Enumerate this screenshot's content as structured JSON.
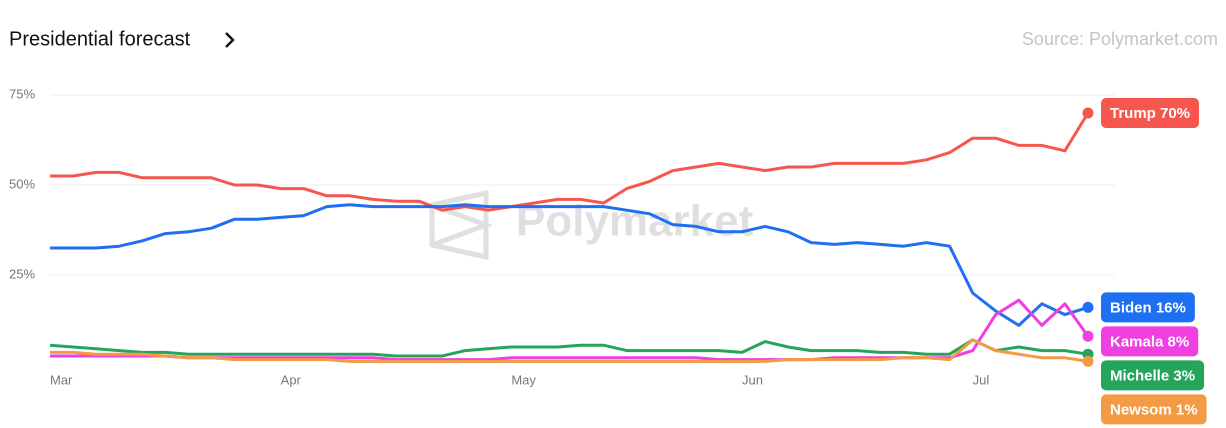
{
  "chart_data": {
    "type": "line",
    "title": "Presidential forecast",
    "source": "Source: Polymarket.com",
    "watermark": "Polymarket",
    "categories": [
      "Mar",
      null,
      null,
      null,
      null,
      null,
      null,
      null,
      null,
      null,
      "Apr",
      null,
      null,
      null,
      null,
      null,
      null,
      null,
      null,
      null,
      "May",
      null,
      null,
      null,
      null,
      null,
      null,
      null,
      null,
      null,
      "Jun",
      null,
      null,
      null,
      null,
      null,
      null,
      null,
      null,
      null,
      "Jul",
      null,
      null,
      null,
      null,
      null
    ],
    "ylim": [
      0,
      80
    ],
    "yticks": [
      {
        "value": 25,
        "label": "25%"
      },
      {
        "value": 50,
        "label": "50%"
      },
      {
        "value": 75,
        "label": "75%"
      }
    ],
    "grid": true,
    "series": [
      {
        "name": "Trump 70%",
        "color": "#f5574f",
        "values": [
          52.5,
          52.5,
          53.5,
          53.5,
          52,
          52,
          52,
          52,
          50,
          50,
          49,
          49,
          47,
          47,
          46,
          45.5,
          45.5,
          43,
          44,
          43,
          44,
          45,
          46,
          46,
          45,
          49,
          51,
          54,
          55,
          56,
          55,
          54,
          55,
          55,
          56,
          56,
          56,
          56,
          57,
          59,
          63,
          63,
          61,
          61,
          59.5,
          70
        ]
      },
      {
        "name": "Biden 16%",
        "color": "#1f6ff2",
        "values": [
          32.5,
          32.5,
          32.5,
          33,
          34.5,
          36.5,
          37,
          38,
          40.5,
          40.5,
          41,
          41.5,
          44,
          44.5,
          44,
          44,
          44,
          44,
          44.5,
          44,
          44,
          44,
          44,
          44,
          44,
          43,
          42,
          39,
          38.5,
          37,
          37,
          38.5,
          37,
          34,
          33.5,
          34,
          33.5,
          33,
          34,
          33,
          20,
          15,
          11,
          17,
          14,
          16
        ]
      },
      {
        "name": "Kamala 8%",
        "color": "#ee3fe0",
        "values": [
          2.5,
          2.5,
          2.5,
          2.5,
          2.5,
          2.5,
          2,
          2,
          2,
          2,
          2,
          2,
          2,
          2,
          2,
          1.5,
          1.5,
          1.5,
          1.5,
          1.5,
          2,
          2,
          2,
          2,
          2,
          2,
          2,
          2,
          2,
          1.5,
          1.5,
          1.5,
          1.5,
          1.5,
          2,
          2,
          2,
          2,
          2,
          2,
          4,
          14,
          18,
          11,
          17,
          8
        ]
      },
      {
        "name": "Michelle 3%",
        "color": "#27a45b",
        "values": [
          5.5,
          5,
          4.5,
          4,
          3.5,
          3.5,
          3,
          3,
          3,
          3,
          3,
          3,
          3,
          3,
          3,
          2.5,
          2.5,
          2.5,
          4,
          4.5,
          5,
          5,
          5,
          5.5,
          5.5,
          4,
          4,
          4,
          4,
          4,
          3.5,
          6.5,
          5,
          4,
          4,
          4,
          3.5,
          3.5,
          3,
          3,
          7,
          4,
          5,
          4,
          4,
          3
        ]
      },
      {
        "name": "Newsom 1%",
        "color": "#f39a45",
        "values": [
          3.5,
          3.5,
          3,
          3,
          3,
          2.5,
          2,
          2,
          1.5,
          1.5,
          1.5,
          1.5,
          1.5,
          1,
          1,
          1,
          1,
          1,
          1,
          1,
          1,
          1,
          1,
          1,
          1,
          1,
          1,
          1,
          1,
          1,
          1,
          1,
          1.5,
          1.5,
          1.5,
          1.5,
          1.5,
          2,
          2,
          1.5,
          7,
          4,
          3,
          2,
          2,
          1
        ]
      }
    ]
  }
}
